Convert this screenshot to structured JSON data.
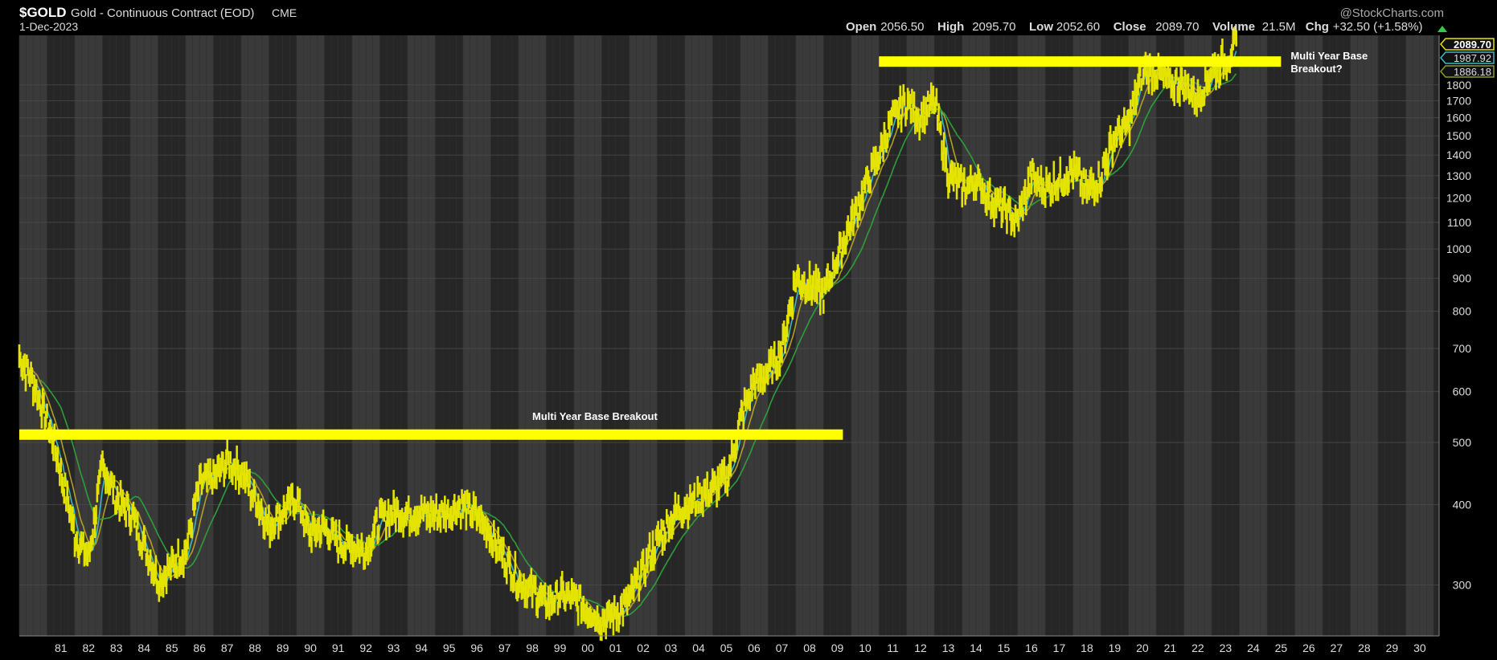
{
  "header": {
    "symbol": "$GOLD",
    "description": "Gold - Continuous Contract (EOD)",
    "exchange": "CME",
    "date": "1-Dec-2023",
    "watermark": "@StockCharts.com",
    "ohlc": [
      {
        "label": "Open",
        "value": "2056.50"
      },
      {
        "label": "High",
        "value": "2095.70"
      },
      {
        "label": "Low",
        "value": "2052.60"
      },
      {
        "label": "Close",
        "value": "2089.70"
      },
      {
        "label": "Volume",
        "value": "21.5M"
      },
      {
        "label": "Chg",
        "value": "+32.50 (+1.58%)"
      }
    ]
  },
  "annotations": [
    {
      "text": "Multi Year Base Breakout",
      "price": 515,
      "from_year": 1980,
      "to_year": 2009.7
    },
    {
      "text": "Multi Year Base Breakout?",
      "price": 1960,
      "from_year": 2011.0,
      "to_year": 2025.5
    }
  ],
  "price_tags": [
    {
      "value": "2089.70",
      "color": "#e5e300"
    },
    {
      "value": "1987.92",
      "color": "#3fb8c4"
    },
    {
      "value": "1886.18",
      "color": "#8a9a2a"
    }
  ],
  "colors": {
    "background": "#000000",
    "plot_background": "#262626",
    "alt_band": "#3a3a3a",
    "grid": "#4a4a4a",
    "price": "#e5e300",
    "ma_fast": "#3fb8c4",
    "ma_mid": "#b0a028",
    "ma_slow": "#2e9e3a",
    "highlight": "#ffff00"
  },
  "chart_data": {
    "type": "line",
    "title": "$GOLD Gold - Continuous Contract (EOD) CME",
    "scale": "log",
    "xlim": [
      1980.0,
      2031.2
    ],
    "ylim": [
      250,
      2150
    ],
    "x_tick_labels": [
      "81",
      "82",
      "83",
      "84",
      "85",
      "86",
      "87",
      "88",
      "89",
      "90",
      "91",
      "92",
      "93",
      "94",
      "95",
      "96",
      "97",
      "98",
      "99",
      "00",
      "01",
      "02",
      "03",
      "04",
      "05",
      "06",
      "07",
      "08",
      "09",
      "10",
      "11",
      "12",
      "13",
      "14",
      "15",
      "16",
      "17",
      "18",
      "19",
      "20",
      "21",
      "22",
      "23",
      "24",
      "25",
      "26",
      "27",
      "28",
      "29",
      "30"
    ],
    "y_ticks": [
      300,
      400,
      500,
      600,
      700,
      800,
      900,
      1000,
      1100,
      1200,
      1300,
      1400,
      1500,
      1600,
      1700,
      1800
    ],
    "series": [
      {
        "x": [
          1980.0,
          1980.5,
          1981.0,
          1981.5,
          1982.0,
          1982.5,
          1983.0,
          1983.5,
          1984.0,
          1984.5,
          1985.0,
          1985.5,
          1986.0,
          1986.5,
          1987.0,
          1987.5,
          1988.0,
          1988.5,
          1989.0,
          1989.5,
          1990.0,
          1990.5,
          1991.0,
          1991.5,
          1992.0,
          1992.5,
          1993.0,
          1993.5,
          1994.0,
          1994.5,
          1995.0,
          1995.5,
          1996.0,
          1996.5,
          1997.0,
          1997.5,
          1998.0,
          1998.5,
          1999.0,
          1999.5,
          2000.0,
          2000.5,
          2001.0,
          2001.5,
          2002.0,
          2002.5,
          2003.0,
          2003.5,
          2004.0,
          2004.5,
          2005.0,
          2005.5,
          2006.0,
          2006.5,
          2007.0,
          2007.5,
          2008.0,
          2008.5,
          2009.0,
          2009.5,
          2010.0,
          2010.5,
          2011.0,
          2011.5,
          2012.0,
          2012.5,
          2013.0,
          2013.5,
          2014.0,
          2014.5,
          2015.0,
          2015.5,
          2016.0,
          2016.5,
          2017.0,
          2017.5,
          2018.0,
          2018.5,
          2019.0,
          2019.5,
          2020.0,
          2020.5,
          2021.0,
          2021.5,
          2022.0,
          2022.5,
          2023.0,
          2023.5,
          2023.92
        ],
        "y": [
          680,
          620,
          540,
          450,
          360,
          330,
          460,
          410,
          390,
          345,
          305,
          320,
          340,
          430,
          440,
          470,
          450,
          410,
          370,
          390,
          410,
          360,
          370,
          350,
          345,
          340,
          380,
          390,
          385,
          390,
          385,
          390,
          400,
          385,
          360,
          330,
          305,
          295,
          280,
          290,
          285,
          275,
          265,
          270,
          285,
          320,
          350,
          380,
          400,
          410,
          425,
          440,
          540,
          620,
          640,
          700,
          900,
          880,
          850,
          970,
          1100,
          1250,
          1400,
          1600,
          1700,
          1600,
          1700,
          1300,
          1250,
          1280,
          1200,
          1150,
          1100,
          1300,
          1250,
          1280,
          1330,
          1230,
          1300,
          1500,
          1560,
          1900,
          1880,
          1800,
          1820,
          1700,
          1900,
          1960,
          2089.7
        ]
      }
    ]
  }
}
